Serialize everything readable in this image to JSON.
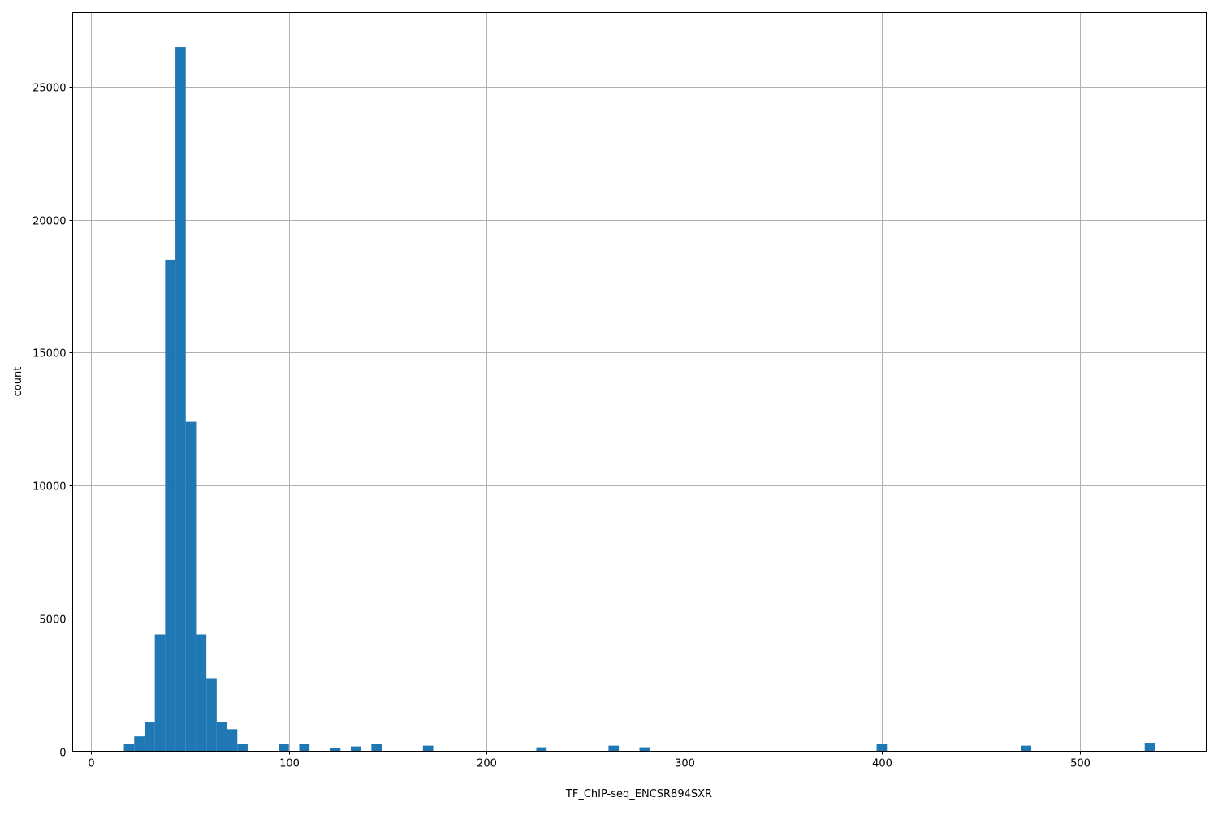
{
  "chart_data": {
    "type": "bar",
    "histogram": true,
    "xlabel": "TF_ChIP-seq_ENCSR894SXR",
    "ylabel": "count",
    "xlim": [
      -9.4,
      563.9
    ],
    "ylim": [
      0,
      27800
    ],
    "grid": true,
    "bar_color": "#1f77b4",
    "grid_color": "#b0b0b0",
    "xticks": [
      0,
      100,
      200,
      300,
      400,
      500
    ],
    "yticks": [
      0,
      5000,
      10000,
      15000,
      20000,
      25000
    ],
    "bin_start": 16.5,
    "bin_width": 5.215,
    "bins": [
      {
        "index": 0,
        "count": 280
      },
      {
        "index": 1,
        "count": 560
      },
      {
        "index": 2,
        "count": 1100
      },
      {
        "index": 3,
        "count": 4400
      },
      {
        "index": 4,
        "count": 18500
      },
      {
        "index": 5,
        "count": 26500
      },
      {
        "index": 6,
        "count": 12400
      },
      {
        "index": 7,
        "count": 4400
      },
      {
        "index": 8,
        "count": 2750
      },
      {
        "index": 9,
        "count": 1100
      },
      {
        "index": 10,
        "count": 830
      },
      {
        "index": 11,
        "count": 280
      },
      {
        "index": 15,
        "count": 280
      },
      {
        "index": 17,
        "count": 280
      },
      {
        "index": 20,
        "count": 120
      },
      {
        "index": 22,
        "count": 180
      },
      {
        "index": 24,
        "count": 280
      },
      {
        "index": 29,
        "count": 210
      },
      {
        "index": 40,
        "count": 150
      },
      {
        "index": 47,
        "count": 210
      },
      {
        "index": 50,
        "count": 150
      },
      {
        "index": 73,
        "count": 280
      },
      {
        "index": 87,
        "count": 210
      },
      {
        "index": 99,
        "count": 320
      }
    ]
  }
}
